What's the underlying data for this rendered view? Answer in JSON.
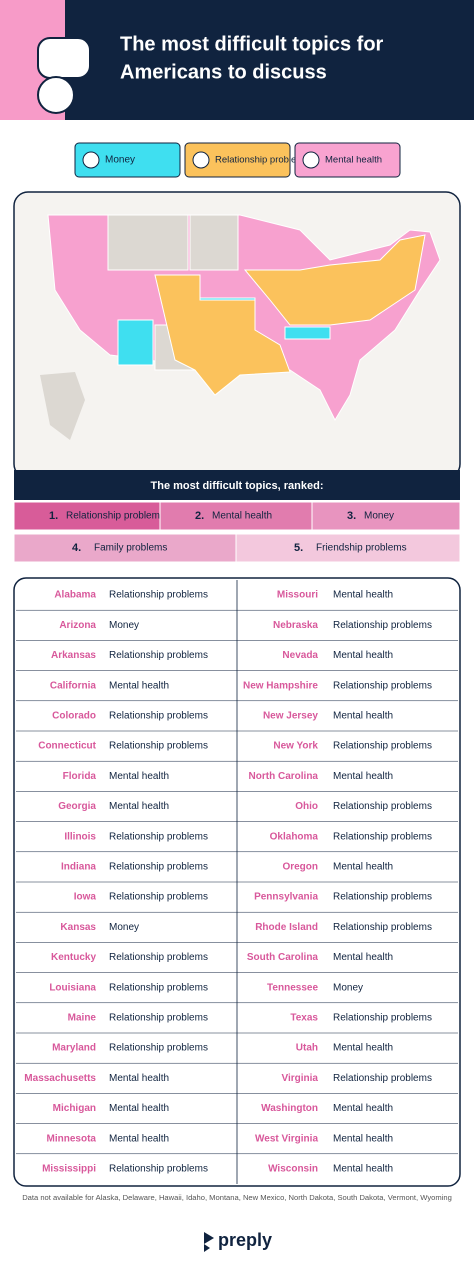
{
  "header": {
    "title_lines": [
      "The most difficult topics for",
      "Americans to discuss"
    ]
  },
  "legend": [
    {
      "label": "Money",
      "color": "#3fdff0"
    },
    {
      "label": "Relationship problems",
      "color": "#fbc25c"
    },
    {
      "label": "Mental health",
      "color": "#f8a3d0"
    }
  ],
  "ranking": {
    "title": "The most difficult topics, ranked:",
    "items": [
      {
        "rank": "1.",
        "label": "Relationship problems",
        "color": "#d85c99"
      },
      {
        "rank": "2.",
        "label": "Mental health",
        "color": "#e17cae"
      },
      {
        "rank": "3.",
        "label": "Money",
        "color": "#e894bf"
      },
      {
        "rank": "4.",
        "label": "Family problems",
        "color": "#eaa8ca"
      },
      {
        "rank": "5.",
        "label": "Friendship problems",
        "color": "#f3c8dd"
      }
    ]
  },
  "table": {
    "rows": [
      [
        "Alabama",
        "Relationship problems",
        "Missouri",
        "Mental health"
      ],
      [
        "Arizona",
        "Money",
        "Nebraska",
        "Relationship problems"
      ],
      [
        "Arkansas",
        "Relationship problems",
        "Nevada",
        "Mental health"
      ],
      [
        "California",
        "Mental health",
        "New Hampshire",
        "Relationship problems"
      ],
      [
        "Colorado",
        "Relationship problems",
        "New Jersey",
        "Mental health"
      ],
      [
        "Connecticut",
        "Relationship problems",
        "New York",
        "Relationship problems"
      ],
      [
        "Florida",
        "Mental health",
        "North Carolina",
        "Mental health"
      ],
      [
        "Georgia",
        "Mental health",
        "Ohio",
        "Relationship problems"
      ],
      [
        "Illinois",
        "Relationship problems",
        "Oklahoma",
        "Relationship problems"
      ],
      [
        "Indiana",
        "Relationship problems",
        "Oregon",
        "Mental health"
      ],
      [
        "Iowa",
        "Relationship problems",
        "Pennsylvania",
        "Relationship problems"
      ],
      [
        "Kansas",
        "Money",
        "Rhode Island",
        "Relationship problems"
      ],
      [
        "Kentucky",
        "Relationship problems",
        "South Carolina",
        "Mental health"
      ],
      [
        "Louisiana",
        "Relationship problems",
        "Tennessee",
        "Money"
      ],
      [
        "Maine",
        "Relationship problems",
        "Texas",
        "Relationship problems"
      ],
      [
        "Maryland",
        "Relationship problems",
        "Utah",
        "Mental health"
      ],
      [
        "Massachusetts",
        "Mental health",
        "Virginia",
        "Relationship problems"
      ],
      [
        "Michigan",
        "Mental health",
        "Washington",
        "Mental health"
      ],
      [
        "Minnesota",
        "Mental health",
        "West Virginia",
        "Mental health"
      ],
      [
        "Mississippi",
        "Relationship problems",
        "Wisconsin",
        "Mental health"
      ]
    ]
  },
  "footnote": "Data not available for Alaska, Delaware, Hawaii, Idaho, Montana, New Mexico, North Dakota, South Dakota, Vermont, Wyoming",
  "brand": "preply"
}
